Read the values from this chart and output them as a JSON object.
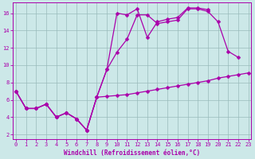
{
  "xlabel": "Windchill (Refroidissement éolien,°C)",
  "background_color": "#cce8e8",
  "line_color": "#aa00aa",
  "grid_color": "#99bbbb",
  "x": [
    0,
    1,
    2,
    3,
    4,
    5,
    6,
    7,
    8,
    9,
    10,
    11,
    12,
    13,
    14,
    15,
    16,
    17,
    18,
    19,
    20,
    21,
    22,
    23
  ],
  "line1": [
    7.0,
    5.0,
    5.0,
    5.5,
    4.0,
    4.5,
    3.8,
    2.5,
    6.3,
    6.4,
    6.5,
    6.6,
    6.8,
    7.0,
    7.2,
    7.4,
    7.6,
    7.8,
    8.0,
    8.2,
    8.5,
    8.7,
    8.9,
    9.1
  ],
  "line2": [
    7.0,
    5.0,
    5.0,
    5.5,
    4.0,
    4.5,
    3.8,
    2.5,
    6.3,
    9.5,
    11.5,
    13.0,
    15.8,
    15.8,
    14.8,
    15.0,
    15.2,
    16.5,
    16.5,
    16.2,
    15.0,
    11.6,
    10.9,
    null
  ],
  "line3": [
    7.0,
    5.0,
    5.0,
    5.5,
    4.0,
    4.5,
    3.8,
    2.5,
    6.3,
    9.5,
    16.0,
    15.8,
    16.5,
    13.2,
    15.0,
    15.3,
    15.5,
    16.6,
    16.6,
    16.4,
    null,
    null,
    null,
    null
  ],
  "xlim": [
    -0.3,
    23.3
  ],
  "ylim": [
    1.5,
    17.2
  ],
  "yticks": [
    2,
    4,
    6,
    8,
    10,
    12,
    14,
    16
  ],
  "xticks": [
    0,
    1,
    2,
    3,
    4,
    5,
    6,
    7,
    8,
    9,
    10,
    11,
    12,
    13,
    14,
    15,
    16,
    17,
    18,
    19,
    20,
    21,
    22,
    23
  ],
  "markersize": 2.5,
  "linewidth": 0.9,
  "xlabel_fontsize": 5.5,
  "tick_fontsize": 5.0
}
